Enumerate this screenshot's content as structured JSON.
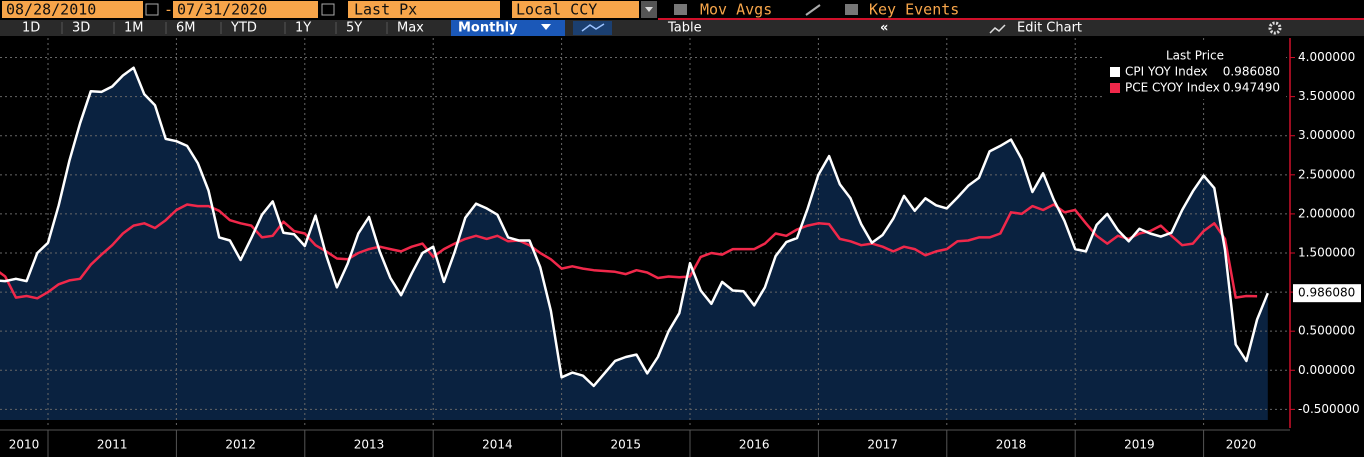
{
  "toolbar": {
    "start_date": "08/28/2010",
    "separator": "-",
    "end_date": "07/31/2020",
    "field": "Last Px",
    "currency": "Local CCY",
    "mov_avgs": "Mov Avgs",
    "key_events": "Key Events",
    "ranges": [
      "1D",
      "3D",
      "1M",
      "6M",
      "YTD",
      "1Y",
      "5Y",
      "Max"
    ],
    "period": "Monthly",
    "table": "Table",
    "collapse": "«",
    "edit_chart": "Edit Chart"
  },
  "chart_data": {
    "type": "line",
    "legend_title": "Last Price",
    "legend": "upper right",
    "grid": true,
    "area_under_first": true,
    "x_labels": [
      "2010",
      "2011",
      "2012",
      "2013",
      "2014",
      "2015",
      "2016",
      "2017",
      "2018",
      "2019",
      "2020"
    ],
    "ylim": [
      -0.7,
      4.25
    ],
    "yticks": [
      {
        "value": -0.5,
        "label": "-0.500000"
      },
      {
        "value": 0,
        "label": "0.000000"
      },
      {
        "value": 0.5,
        "label": "0.500000"
      },
      {
        "value": 1,
        "label": "1.000000"
      },
      {
        "value": 1.5,
        "label": "1.500000"
      },
      {
        "value": 2,
        "label": "2.000000"
      },
      {
        "value": 2.5,
        "label": "2.500000"
      },
      {
        "value": 3,
        "label": "3.000000"
      },
      {
        "value": 3.5,
        "label": "3.500000"
      },
      {
        "value": 4,
        "label": "4.000000"
      }
    ],
    "series": [
      {
        "name": "CPI YOY Index",
        "color": "#ffffff",
        "last_price": {
          "value": 0.98608,
          "label": "0.986080"
        },
        "values": [
          1.15,
          1.14,
          1.17,
          1.14,
          1.5,
          1.63,
          2.11,
          2.68,
          3.16,
          3.57,
          3.56,
          3.63,
          3.77,
          3.87,
          3.53,
          3.39,
          2.96,
          2.93,
          2.87,
          2.65,
          2.3,
          1.7,
          1.66,
          1.41,
          1.69,
          1.99,
          2.16,
          1.76,
          1.74,
          1.59,
          1.98,
          1.47,
          1.06,
          1.36,
          1.75,
          1.96,
          1.52,
          1.18,
          0.96,
          1.24,
          1.5,
          1.58,
          1.13,
          1.51,
          1.95,
          2.13,
          2.07,
          1.99,
          1.7,
          1.66,
          1.66,
          1.32,
          0.76,
          -0.09,
          -0.03,
          -0.07,
          -0.2,
          -0.04,
          0.12,
          0.17,
          0.2,
          -0.04,
          0.17,
          0.5,
          0.73,
          1.37,
          1.02,
          0.85,
          1.13,
          1.02,
          1.01,
          0.83,
          1.06,
          1.46,
          1.64,
          1.69,
          2.07,
          2.5,
          2.74,
          2.38,
          2.2,
          1.87,
          1.63,
          1.73,
          1.94,
          2.23,
          2.04,
          2.2,
          2.11,
          2.07,
          2.21,
          2.36,
          2.46,
          2.8,
          2.87,
          2.95,
          2.7,
          2.28,
          2.52,
          2.18,
          1.91,
          1.55,
          1.52,
          1.86,
          2.0,
          1.79,
          1.65,
          1.81,
          1.75,
          1.71,
          1.76,
          2.05,
          2.29,
          2.49,
          2.33,
          1.54,
          0.33,
          0.12,
          0.65,
          0.98608
        ]
      },
      {
        "name": "PCE CYOY Index",
        "color": "#f0284a",
        "last_price": {
          "value": 0.94749,
          "label": "0.947490"
        },
        "values": [
          1.3,
          1.2,
          0.93,
          0.95,
          0.92,
          1.0,
          1.1,
          1.15,
          1.17,
          1.35,
          1.48,
          1.6,
          1.75,
          1.85,
          1.88,
          1.82,
          1.92,
          2.05,
          2.12,
          2.1,
          2.1,
          2.04,
          1.92,
          1.88,
          1.85,
          1.7,
          1.72,
          1.9,
          1.78,
          1.75,
          1.6,
          1.52,
          1.43,
          1.42,
          1.5,
          1.55,
          1.58,
          1.55,
          1.52,
          1.58,
          1.62,
          1.45,
          1.55,
          1.62,
          1.68,
          1.72,
          1.68,
          1.72,
          1.65,
          1.66,
          1.6,
          1.5,
          1.42,
          1.3,
          1.33,
          1.3,
          1.28,
          1.27,
          1.26,
          1.23,
          1.28,
          1.25,
          1.18,
          1.2,
          1.19,
          1.2,
          1.45,
          1.5,
          1.48,
          1.55,
          1.55,
          1.55,
          1.62,
          1.75,
          1.72,
          1.8,
          1.85,
          1.88,
          1.87,
          1.68,
          1.65,
          1.6,
          1.62,
          1.58,
          1.52,
          1.58,
          1.55,
          1.47,
          1.52,
          1.55,
          1.65,
          1.66,
          1.7,
          1.7,
          1.75,
          2.02,
          2.0,
          2.1,
          2.05,
          2.12,
          2.02,
          2.05,
          1.88,
          1.72,
          1.62,
          1.72,
          1.68,
          1.75,
          1.78,
          1.85,
          1.72,
          1.6,
          1.62,
          1.78,
          1.88,
          1.68,
          0.93,
          0.95,
          0.94749,
          null
        ]
      }
    ]
  }
}
